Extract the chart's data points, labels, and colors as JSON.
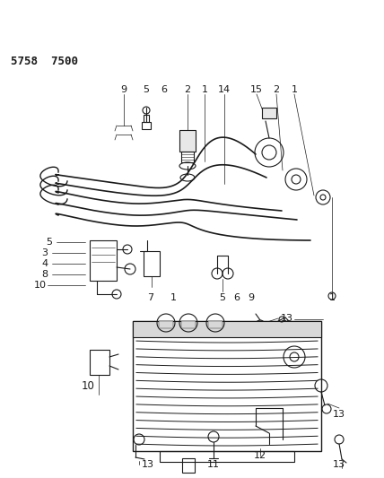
{
  "title": "5758  7500",
  "bg_color": "#ffffff",
  "line_color": "#1a1a1a",
  "title_fontsize": 9,
  "label_fontsize": 7.5,
  "fig_w": 4.28,
  "fig_h": 5.33,
  "dpi": 100
}
